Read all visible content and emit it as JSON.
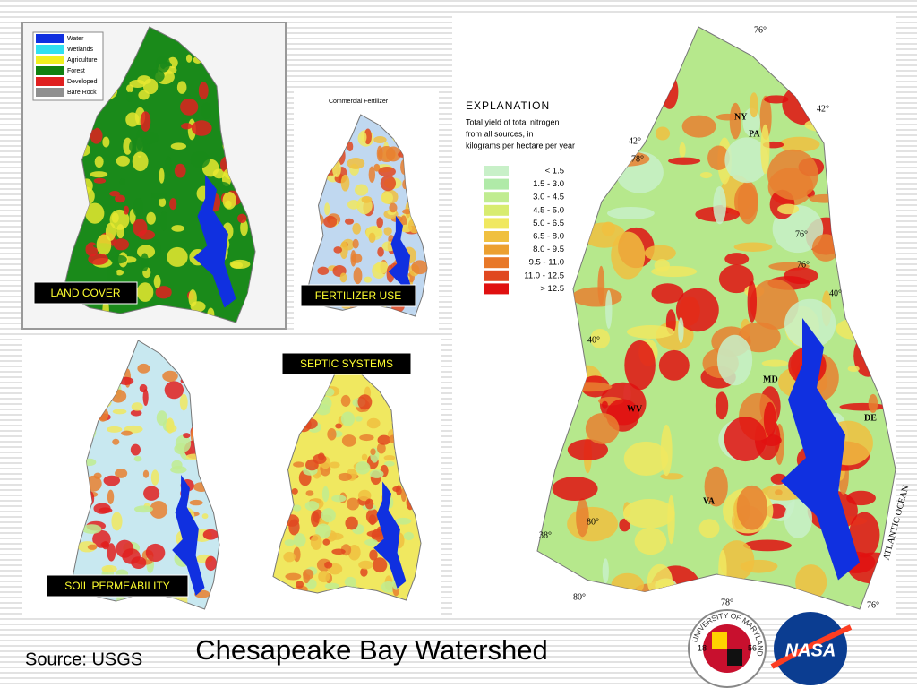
{
  "title": "Chesapeake Bay Watershed",
  "source": "Source: USGS",
  "panels": [
    {
      "label": "LAND COVER"
    },
    {
      "label": "FERTILIZER USE"
    },
    {
      "label": "SEPTIC SYSTEMS"
    },
    {
      "label": "SOIL PERMEABILITY"
    }
  ],
  "land_cover_legend": [
    {
      "label": "Water",
      "color": "#1030e0"
    },
    {
      "label": "Wetlands",
      "color": "#30e0f0"
    },
    {
      "label": "Agriculture",
      "color": "#f0f020"
    },
    {
      "label": "Forest",
      "color": "#108010"
    },
    {
      "label": "Developed",
      "color": "#e02020"
    },
    {
      "label": "Bare Rock",
      "color": "#909090"
    }
  ],
  "fertilizer_caption": "Commercial Fertilizer",
  "nitrogen_explanation": {
    "heading": "EXPLANATION",
    "description": [
      "Total yield of total nitrogen",
      "from all sources, in",
      "kilograms per hectare per year"
    ],
    "classes": [
      {
        "label": "<  1.5",
        "color": "#c8f0c8"
      },
      {
        "label": "1.5 -  3.0",
        "color": "#b0eaa8"
      },
      {
        "label": "3.0 -  4.5",
        "color": "#c0ec90"
      },
      {
        "label": "4.5 -  5.0",
        "color": "#d8ec70"
      },
      {
        "label": "5.0 -  6.5",
        "color": "#f0e860"
      },
      {
        "label": "6.5 -  8.0",
        "color": "#f0c040"
      },
      {
        "label": "8.0 -  9.5",
        "color": "#eca030"
      },
      {
        "label": "9.5 - 11.0",
        "color": "#e87828"
      },
      {
        "label": "11.0 - 12.5",
        "color": "#e04820"
      },
      {
        "label": "> 12.5",
        "color": "#e01010"
      }
    ]
  },
  "map_labels": [
    "NY",
    "PA",
    "MD",
    "WV",
    "VA",
    "DE",
    "76°",
    "42°",
    "42°",
    "78°",
    "76°",
    "76°",
    "40°",
    "40°",
    "80°",
    "38°",
    "78°",
    "80°",
    "76°",
    "ATLANTIC OCEAN"
  ],
  "logos": {
    "university": "UNIVERSITY OF MARYLAND",
    "years": [
      "18",
      "56"
    ],
    "agency": "NASA"
  }
}
